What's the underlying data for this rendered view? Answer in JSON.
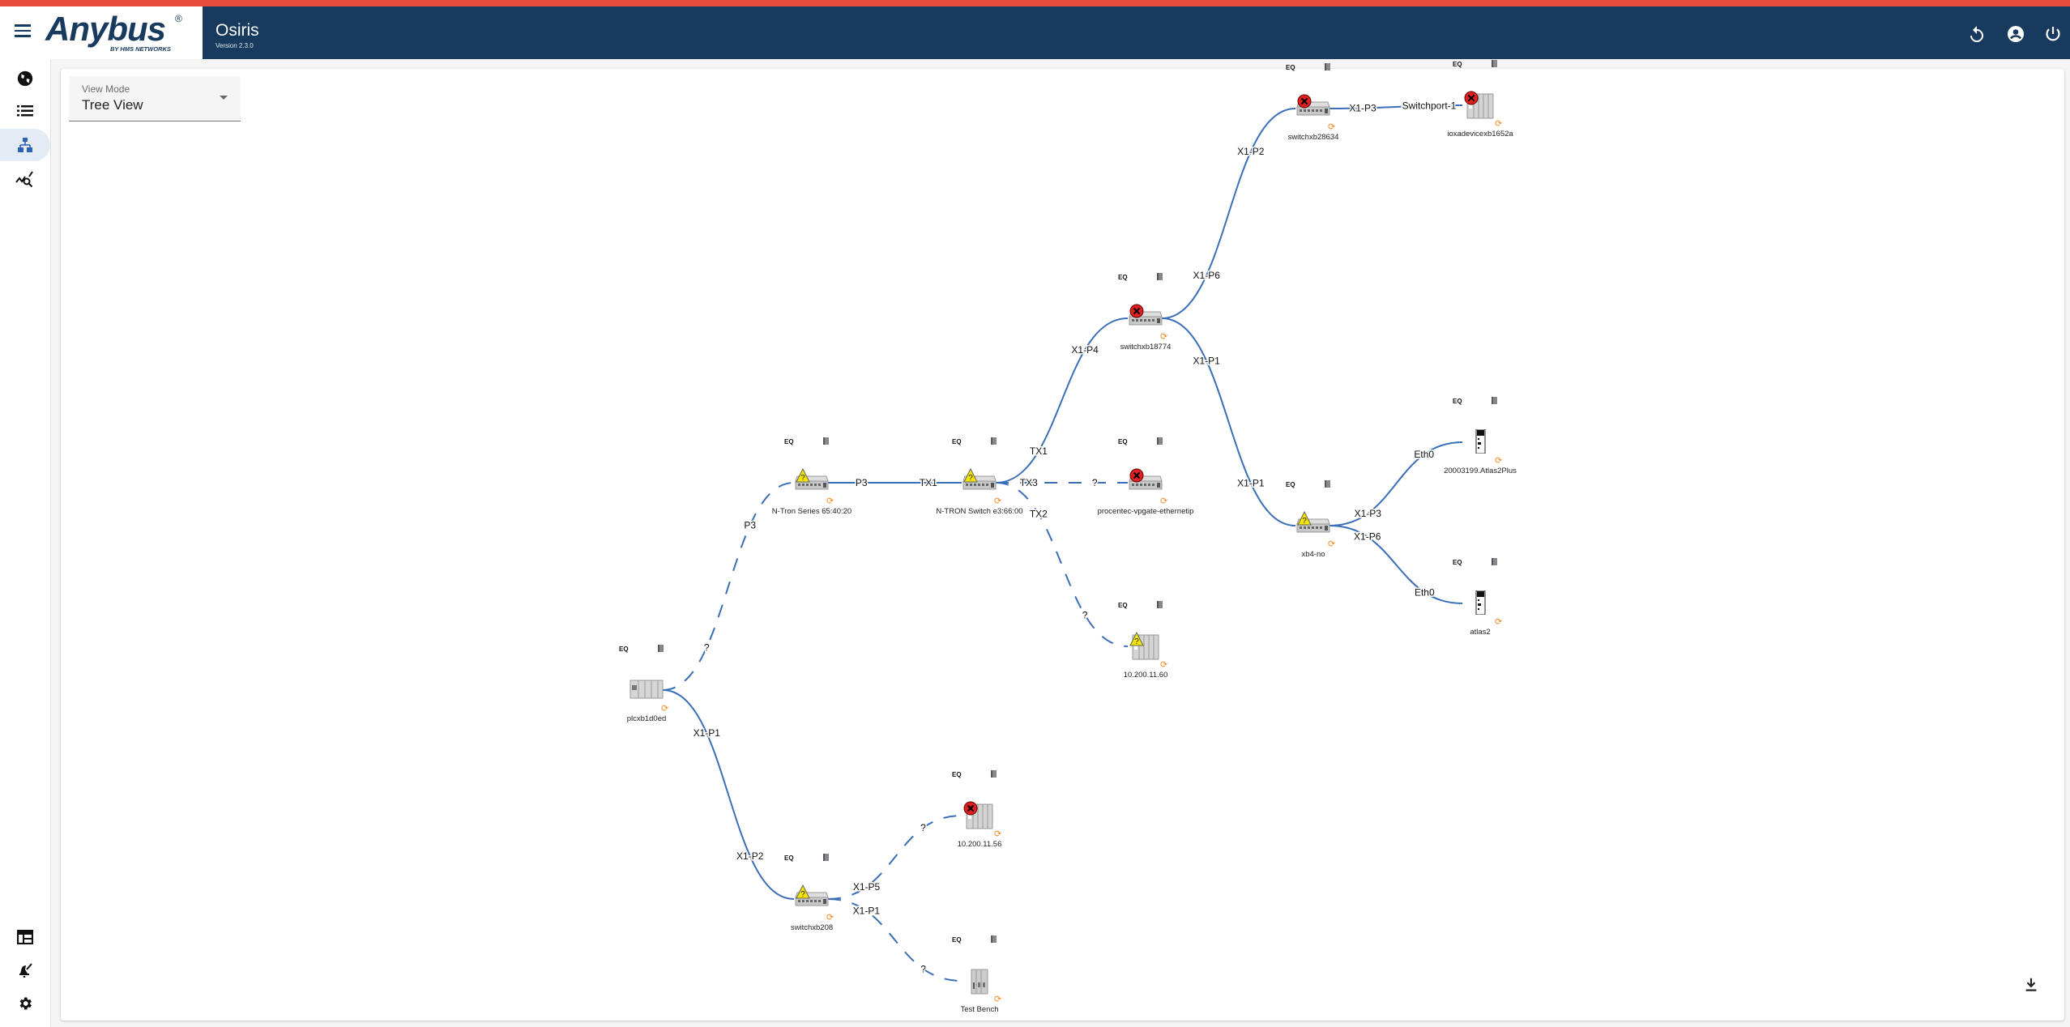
{
  "header": {
    "brand": "Anybus",
    "brand_reg": "®",
    "brand_sub": "BY HMS NETWORKS",
    "app_title": "Osiris",
    "version": "Version 2.3.0",
    "icons": [
      "refresh-icon",
      "account-icon",
      "power-icon"
    ]
  },
  "colors": {
    "topbar": "#e84c3d",
    "header": "#173a5e",
    "link": "#3a6fb8",
    "error": "#e02020",
    "warning": "#f5e500",
    "alarm": "#f08a24"
  },
  "sidebar": {
    "items": [
      {
        "icon": "globe-icon",
        "active": false
      },
      {
        "icon": "list-icon",
        "active": false
      },
      {
        "icon": "topology-icon",
        "active": true
      },
      {
        "icon": "analytics-icon",
        "active": false
      }
    ],
    "bottom_items": [
      {
        "icon": "dashboard-icon"
      },
      {
        "icon": "alarm-edit-icon"
      },
      {
        "icon": "settings-icon"
      }
    ]
  },
  "view_mode": {
    "label": "View Mode",
    "value": "Tree View"
  },
  "topology": {
    "node_badge_text": "EQ",
    "nodes": [
      {
        "name": "plcxb1d0ed",
        "type": "plc",
        "status": "ok"
      },
      {
        "name": "N-Tron Series 65:40:20",
        "type": "switch",
        "status": "warning"
      },
      {
        "name": "N-TRON Switch e3:66:00",
        "type": "switch",
        "status": "warning"
      },
      {
        "name": "procentec-vpgate-ethernetip",
        "type": "switch",
        "status": "error"
      },
      {
        "name": "10.200.11.60",
        "type": "plc-rack",
        "status": "warning"
      },
      {
        "name": "switchxb18774",
        "type": "switch",
        "status": "error"
      },
      {
        "name": "switchxb28634",
        "type": "switch",
        "status": "error"
      },
      {
        "name": "ioxadevicexb1652a",
        "type": "plc-rack",
        "status": "error"
      },
      {
        "name": "xb4-no",
        "type": "switch",
        "status": "warning"
      },
      {
        "name": "20003199.Atlas2Plus",
        "type": "atlas",
        "status": "ok"
      },
      {
        "name": "atlas2",
        "type": "atlas",
        "status": "ok"
      },
      {
        "name": "switchxb208",
        "type": "switch",
        "status": "warning"
      },
      {
        "name": "10.200.11.56",
        "type": "plc-rack",
        "status": "error"
      },
      {
        "name": "Test Bench",
        "type": "bench",
        "status": "ok"
      }
    ],
    "edges": [
      {
        "from": 0,
        "to": 1,
        "from_port": "?",
        "to_port": "P3",
        "dashed": true
      },
      {
        "from": 1,
        "to": 2,
        "from_port": "P3",
        "to_port": "TX1",
        "dashed": false
      },
      {
        "from": 2,
        "to": 5,
        "from_port": "TX1",
        "to_port": "X1-P4",
        "dashed": false
      },
      {
        "from": 2,
        "to": 3,
        "from_port": "TX3",
        "to_port": "?",
        "dashed": true
      },
      {
        "from": 2,
        "to": 4,
        "from_port": "TX2",
        "to_port": "?",
        "dashed": true
      },
      {
        "from": 5,
        "to": 6,
        "from_port": "X1-P6",
        "to_port": "X1-P2",
        "dashed": false
      },
      {
        "from": 6,
        "to": 7,
        "from_port": "X1-P3",
        "to_port": "Switchport-1",
        "dashed": false
      },
      {
        "from": 5,
        "to": 8,
        "from_port": "X1-P1",
        "to_port": "X1-P1",
        "dashed": false
      },
      {
        "from": 8,
        "to": 9,
        "from_port": "X1-P3",
        "to_port": "Eth0",
        "dashed": false
      },
      {
        "from": 8,
        "to": 10,
        "from_port": "X1-P6",
        "to_port": "Eth0",
        "dashed": false
      },
      {
        "from": 0,
        "to": 11,
        "from_port": "X1-P1",
        "to_port": "X1-P2",
        "dashed": false
      },
      {
        "from": 11,
        "to": 12,
        "from_port": "X1-P5",
        "to_port": "?",
        "dashed": true
      },
      {
        "from": 11,
        "to": 13,
        "from_port": "X1-P1",
        "to_port": "?",
        "dashed": true
      }
    ]
  },
  "download_icon": "download-icon"
}
